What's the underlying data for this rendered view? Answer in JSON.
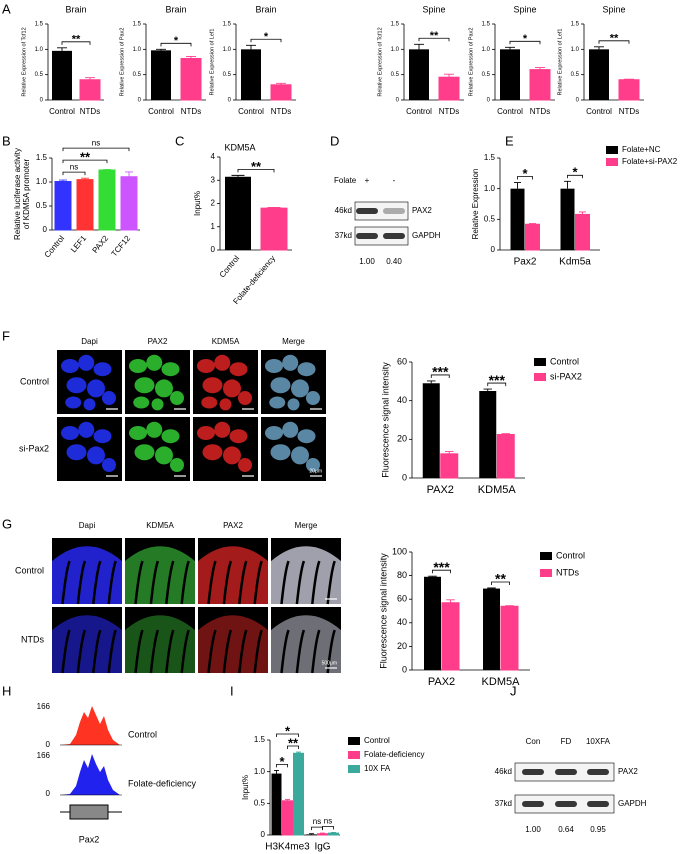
{
  "chart_data": [
    {
      "type": "bar",
      "title": "Brain",
      "ylabel": "Relative Expression of Tcf12",
      "categories": [
        "Control",
        "NTDs"
      ],
      "values": [
        0.97,
        0.4
      ],
      "errors": [
        0.06,
        0.04
      ],
      "colors": [
        "#000000",
        "#ff3d8b"
      ],
      "ylim": [
        0,
        1.5
      ],
      "yticks": [
        0,
        0.5,
        {
          "value": 1,
          "label": "1.0"
        },
        1.5
      ],
      "annotations": [
        "**"
      ]
    },
    {
      "type": "bar",
      "title": "Brain",
      "ylabel": "Relative Expression of Pax2",
      "categories": [
        "Control",
        "NTDs"
      ],
      "values": [
        0.98,
        0.82
      ],
      "errors": [
        0.02,
        0.04
      ],
      "colors": [
        "#000000",
        "#ff3d8b"
      ],
      "ylim": [
        0,
        1.5
      ],
      "yticks": [
        0,
        0.5,
        {
          "value": 1,
          "label": "1.0"
        },
        1.5
      ],
      "annotations": [
        "*"
      ]
    },
    {
      "type": "bar",
      "title": "Brain",
      "ylabel": "Relative Expression of Lef1",
      "categories": [
        "Control",
        "NTDs"
      ],
      "values": [
        1.0,
        0.3
      ],
      "errors": [
        0.08,
        0.03
      ],
      "colors": [
        "#000000",
        "#ff3d8b"
      ],
      "ylim": [
        0,
        1.5
      ],
      "yticks": [
        0,
        0.5,
        {
          "value": 1,
          "label": "1.0"
        },
        1.5
      ],
      "annotations": [
        "*"
      ]
    },
    {
      "type": "bar",
      "title": "Spine",
      "ylabel": "Relative Expression of Tcf12",
      "categories": [
        "Control",
        "NTDs"
      ],
      "values": [
        1.0,
        0.45
      ],
      "errors": [
        0.1,
        0.06
      ],
      "colors": [
        "#000000",
        "#ff3d8b"
      ],
      "ylim": [
        0,
        1.5
      ],
      "yticks": [
        0,
        0.5,
        {
          "value": 1,
          "label": "1.0"
        },
        1.5
      ],
      "annotations": [
        "**"
      ]
    },
    {
      "type": "bar",
      "title": "Spine",
      "ylabel": "Relative Expression of Pax2",
      "categories": [
        "Control",
        "NTDs"
      ],
      "values": [
        1.0,
        0.6
      ],
      "errors": [
        0.04,
        0.04
      ],
      "colors": [
        "#000000",
        "#ff3d8b"
      ],
      "ylim": [
        0,
        1.5
      ],
      "yticks": [
        0,
        0.5,
        {
          "value": 1,
          "label": "1.0"
        },
        1.5
      ],
      "annotations": [
        "*"
      ]
    },
    {
      "type": "bar",
      "title": "Spine",
      "ylabel": "Relative Expression of Lef1",
      "categories": [
        "Control",
        "NTDs"
      ],
      "values": [
        1.0,
        0.4
      ],
      "errors": [
        0.05,
        0.01
      ],
      "colors": [
        "#000000",
        "#ff3d8b"
      ],
      "ylim": [
        0,
        1.5
      ],
      "yticks": [
        0,
        0.5,
        {
          "value": 1,
          "label": "1.0"
        },
        1.5
      ],
      "annotations": [
        "**"
      ]
    },
    {
      "type": "bar",
      "ylabel": [
        "Relative luciferase activity",
        "of KDM5A promoter"
      ],
      "categories": [
        "Control",
        "LEF1",
        "PAX2",
        "TCF12"
      ],
      "values": [
        1.01,
        1.05,
        1.25,
        1.11
      ],
      "errors": [
        0.03,
        0.03,
        0.01,
        0.1
      ],
      "colors": [
        "#3333ff",
        "#ff3333",
        "#33dd33",
        "#cc55ff"
      ],
      "ylim": [
        0,
        1.5
      ],
      "yticks": [
        0,
        0.5,
        {
          "value": 1,
          "label": "1.0"
        },
        1.5
      ],
      "annotations": [
        "ns",
        "**",
        "ns"
      ]
    },
    {
      "type": "bar",
      "title": "KDM5A",
      "ylabel": "Input%",
      "categories": [
        "Control",
        "Folate-deficiency"
      ],
      "values": [
        3.15,
        1.8
      ],
      "errors": [
        0.06,
        0.03
      ],
      "colors": [
        "#000000",
        "#ff3d8b"
      ],
      "ylim": [
        0,
        4
      ],
      "yticks": [
        0,
        1,
        2,
        3,
        4
      ],
      "annotations": [
        "**"
      ]
    },
    {
      "type": "bar",
      "ylabel": "Relative Expression",
      "categories": [
        "Pax2",
        "Kdm5a"
      ],
      "series": [
        {
          "name": "Folate+NC",
          "color": "#000000",
          "values": [
            1.0,
            1.0
          ],
          "errors": [
            0.1,
            0.12
          ]
        },
        {
          "name": "Folate+si-PAX2",
          "color": "#ff3d8b",
          "values": [
            0.42,
            0.58
          ],
          "errors": [
            0.01,
            0.04
          ]
        }
      ],
      "ylim": [
        0,
        1.5
      ],
      "yticks": [
        0,
        0.5,
        {
          "value": 1,
          "label": "1.0"
        },
        1.5
      ],
      "legend": "right",
      "annotations": [
        "*",
        "*"
      ]
    },
    {
      "type": "bar",
      "ylabel": "Fluorescence signal intensity",
      "categories": [
        "PAX2",
        "KDM5A"
      ],
      "series": [
        {
          "name": "Control",
          "color": "#000000",
          "values": [
            49,
            45
          ],
          "errors": [
            1.2,
            1.0
          ]
        },
        {
          "name": "si-PAX2",
          "color": "#ff3d8b",
          "values": [
            12.5,
            22.5
          ],
          "errors": [
            1.2,
            0.4
          ]
        }
      ],
      "ylim": [
        0,
        60
      ],
      "yticks": [
        0,
        20,
        40,
        60
      ],
      "legend": "right",
      "annotations": [
        "***",
        "***"
      ]
    },
    {
      "type": "bar",
      "ylabel": "Fluorescence signal intensity",
      "categories": [
        "PAX2",
        "KDM5A"
      ],
      "series": [
        {
          "name": "Control",
          "color": "#000000",
          "values": [
            79,
            69
          ],
          "errors": [
            0.5,
            0.5
          ]
        },
        {
          "name": "NTDs",
          "color": "#ff3d8b",
          "values": [
            57,
            54
          ],
          "errors": [
            2.5,
            0.5
          ]
        }
      ],
      "ylim": [
        0,
        100
      ],
      "yticks": [
        0,
        20,
        40,
        60,
        80,
        100
      ],
      "legend": "right",
      "annotations": [
        "***",
        "**"
      ]
    },
    {
      "type": "bar",
      "ylabel": "Input%",
      "categories": [
        "H3K4me3",
        "IgG"
      ],
      "series": [
        {
          "name": "Control",
          "color": "#000000",
          "values": [
            0.97,
            0.01
          ],
          "errors": [
            0.05,
            0.01
          ]
        },
        {
          "name": "Folate-deficiency",
          "color": "#ff3d8b",
          "values": [
            0.54,
            0.02
          ],
          "errors": [
            0.02,
            0.01
          ]
        },
        {
          "name": "10X FA",
          "color": "#3ba99c",
          "values": [
            1.29,
            0.03
          ],
          "errors": [
            0.02,
            0.01
          ]
        }
      ],
      "ylim": [
        0,
        1.5
      ],
      "yticks": [
        0,
        0.5,
        {
          "value": 1,
          "label": "1.0"
        },
        1.5
      ],
      "legend": "right",
      "annotations": [
        "*",
        "**",
        "*",
        "ns",
        "ns"
      ]
    }
  ],
  "labels": [
    "A",
    "B",
    "C",
    "D",
    "E",
    "F",
    "G",
    "H",
    "I",
    "J"
  ],
  "blot_D": {
    "treatment": "Folate",
    "lanes": [
      "+",
      "-"
    ],
    "markers": [
      "46kd",
      "37kd"
    ],
    "proteins": [
      "PAX2",
      "GAPDH"
    ],
    "ratios": [
      "1.00",
      "0.40"
    ]
  },
  "images_F": {
    "columns": [
      "Dapi",
      "PAX2",
      "KDM5A",
      "Merge"
    ],
    "rows": [
      "Control",
      "si-Pax2"
    ],
    "scale": "20μm"
  },
  "images_G": {
    "columns": [
      "Dapi",
      "KDM5A",
      "PAX2",
      "Merge"
    ],
    "rows": [
      "Control",
      "NTDs"
    ],
    "scale": "500μm"
  },
  "tracks_H": {
    "samples": [
      {
        "name": "Control",
        "max": "166",
        "min": "0"
      },
      {
        "name": "Folate-deficiency",
        "max": "166",
        "min": "0"
      }
    ],
    "gene": "Pax2"
  },
  "blot_J": {
    "lanes": [
      "Con",
      "FD",
      "10XFA"
    ],
    "markers": [
      "46kd",
      "37kd"
    ],
    "proteins": [
      "PAX2",
      "GAPDH"
    ],
    "ratios": [
      "1.00",
      "0.64",
      "0.95"
    ]
  }
}
